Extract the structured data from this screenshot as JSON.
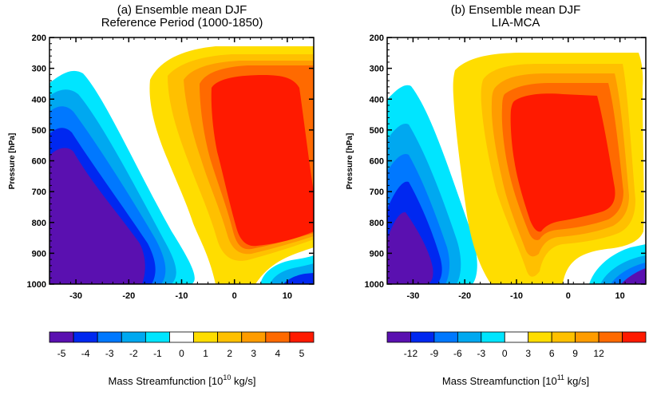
{
  "chart_data": [
    {
      "type": "heatmap",
      "title": "(a) Ensemble mean DJF",
      "subtitle": "Reference Period (1000-1850)",
      "xlabel": "",
      "ylabel": "Pressure [hPa]",
      "xlim": [
        -35,
        15
      ],
      "ylim": [
        1000,
        200
      ],
      "x_ticks": [
        -30,
        -20,
        -10,
        0,
        10
      ],
      "y_ticks": [
        200,
        300,
        400,
        500,
        600,
        700,
        800,
        900,
        1000
      ],
      "colorbar": {
        "label_prefix": "Mass Streamfunction [10",
        "label_exp": "10",
        "label_suffix": " kg/s]",
        "ticks": [
          "-5",
          "-4",
          "-3",
          "-2",
          "-1",
          "0",
          "1",
          "2",
          "3",
          "4",
          "5"
        ]
      },
      "features": [
        {
          "name": "southern cell",
          "center_lat": -28,
          "center_p": 800,
          "min_value": -5
        },
        {
          "name": "hadley cell",
          "center_lat": 3,
          "center_p": 550,
          "max_value": 5
        },
        {
          "name": "northern cell",
          "center_lat": 12,
          "center_p": 980,
          "min_value": -4
        }
      ]
    },
    {
      "type": "heatmap",
      "title": "(b) Ensemble mean DJF",
      "subtitle": "LIA-MCA",
      "xlabel": "",
      "ylabel": "Pressure [hPa]",
      "xlim": [
        -35,
        15
      ],
      "ylim": [
        1000,
        200
      ],
      "x_ticks": [
        -30,
        -20,
        -10,
        0,
        10
      ],
      "y_ticks": [
        200,
        300,
        400,
        500,
        600,
        700,
        800,
        900,
        1000
      ],
      "colorbar": {
        "label_prefix": "Mass Streamfunction [10",
        "label_exp": "11",
        "label_suffix": " kg/s]",
        "ticks": [
          "-12",
          "-9",
          "-6",
          "-3",
          "0",
          "3",
          "6",
          "9",
          "12"
        ]
      },
      "features": [
        {
          "name": "southern cell",
          "center_lat": -30,
          "center_p": 850,
          "min_value": -12
        },
        {
          "name": "hadley cell",
          "center_lat": -3,
          "center_p": 550,
          "max_value": 12
        },
        {
          "name": "northern cell",
          "center_lat": 12,
          "center_p": 960,
          "min_value": -9
        }
      ]
    }
  ]
}
